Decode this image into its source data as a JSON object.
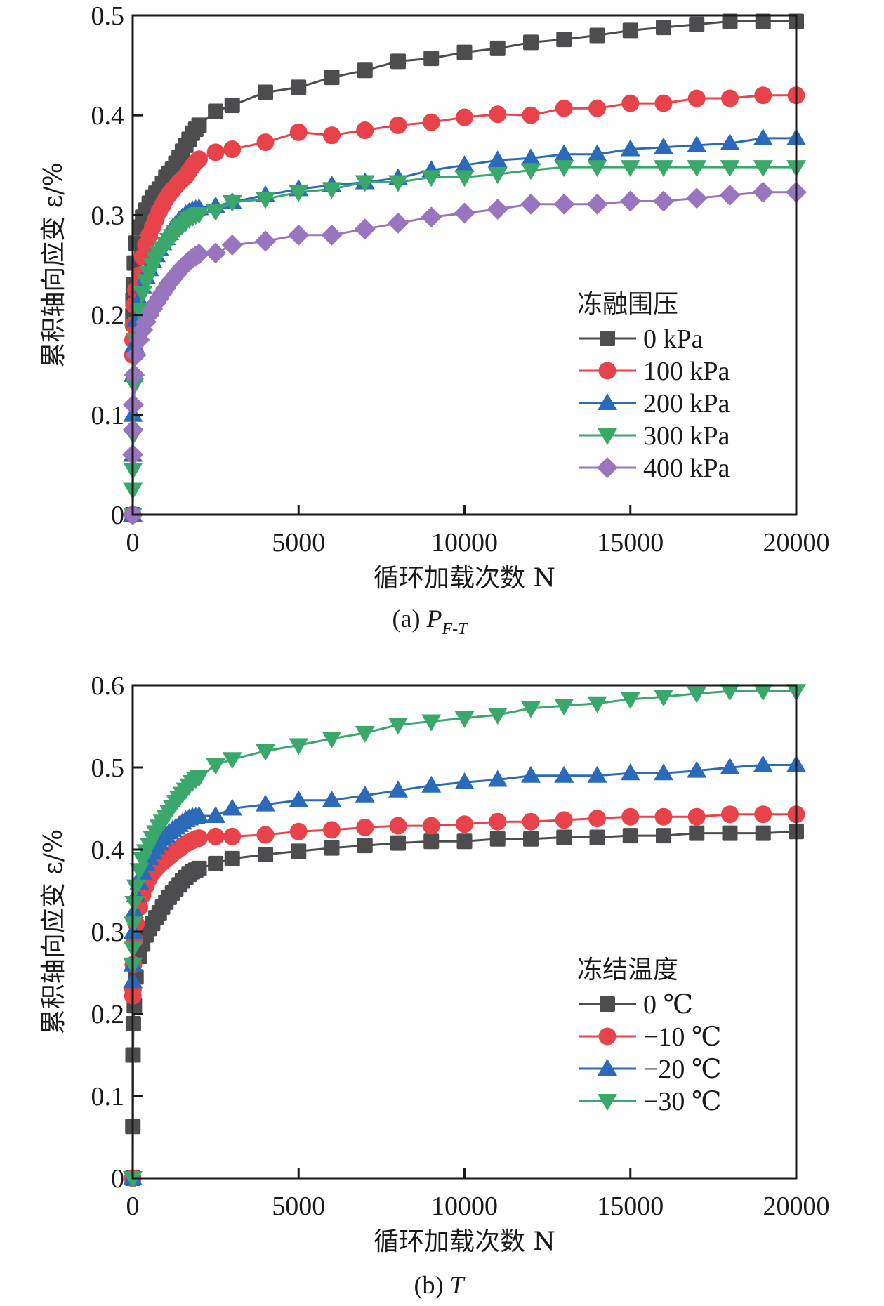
{
  "figure": {
    "panels": [
      {
        "caption_prefix": "(a) ",
        "caption_var": "P",
        "caption_sub": "F-T",
        "legend_title": "冻融围压"
      },
      {
        "caption_prefix": "(b) ",
        "caption_var": "T",
        "caption_sub": "",
        "legend_title": "冻结温度"
      }
    ]
  },
  "chart_data": [
    {
      "type": "line",
      "title": "(a) P_F-T",
      "xlabel": "循环加载次数 N",
      "ylabel": "累积轴向应变 ε/%",
      "xlim": [
        0,
        20000
      ],
      "ylim": [
        0,
        0.5
      ],
      "xticks": [
        0,
        5000,
        10000,
        15000,
        20000
      ],
      "xtick_labels": [
        "0",
        "5000",
        "10000",
        "15000",
        "20000"
      ],
      "yticks": [
        0,
        0.1,
        0.2,
        0.3,
        0.4,
        0.5
      ],
      "ytick_labels": [
        "0",
        "0.1",
        "0.2",
        "0.3",
        "0.4",
        "0.5"
      ],
      "grid": false,
      "legend_title": "冻融围压",
      "legend_position": "center-right",
      "series": [
        {
          "name": "0 kPa",
          "marker": "square",
          "color": "#4d4d4f",
          "x": [
            0,
            5,
            10,
            20,
            50,
            100,
            200,
            300,
            400,
            500,
            600,
            700,
            800,
            900,
            1000,
            1100,
            1200,
            1300,
            1400,
            1500,
            1600,
            1700,
            1800,
            1900,
            2000,
            2500,
            3000,
            4000,
            5000,
            6000,
            7000,
            8000,
            9000,
            10000,
            11000,
            12000,
            13000,
            14000,
            15000,
            16000,
            17000,
            18000,
            19000,
            20000
          ],
          "y": [
            0,
            0.2,
            0.215,
            0.23,
            0.252,
            0.272,
            0.288,
            0.298,
            0.305,
            0.312,
            0.318,
            0.322,
            0.326,
            0.332,
            0.338,
            0.342,
            0.346,
            0.352,
            0.358,
            0.364,
            0.37,
            0.376,
            0.382,
            0.386,
            0.39,
            0.404,
            0.41,
            0.423,
            0.428,
            0.438,
            0.445,
            0.454,
            0.457,
            0.463,
            0.467,
            0.473,
            0.476,
            0.48,
            0.485,
            0.488,
            0.491,
            0.494,
            0.494,
            0.494
          ]
        },
        {
          "name": "100 kPa",
          "marker": "circle",
          "color": "#e8434a",
          "x": [
            0,
            5,
            10,
            20,
            50,
            100,
            200,
            300,
            400,
            500,
            600,
            700,
            800,
            900,
            1000,
            1100,
            1200,
            1300,
            1400,
            1500,
            1600,
            1700,
            1800,
            1900,
            2000,
            2500,
            3000,
            4000,
            5000,
            6000,
            7000,
            8000,
            9000,
            10000,
            11000,
            12000,
            13000,
            14000,
            15000,
            16000,
            17000,
            18000,
            19000,
            20000
          ],
          "y": [
            0,
            0.16,
            0.175,
            0.19,
            0.21,
            0.225,
            0.24,
            0.258,
            0.27,
            0.28,
            0.288,
            0.296,
            0.304,
            0.31,
            0.316,
            0.321,
            0.325,
            0.329,
            0.333,
            0.336,
            0.339,
            0.344,
            0.349,
            0.353,
            0.356,
            0.363,
            0.366,
            0.373,
            0.383,
            0.38,
            0.385,
            0.39,
            0.393,
            0.398,
            0.401,
            0.4,
            0.407,
            0.407,
            0.412,
            0.412,
            0.417,
            0.417,
            0.42,
            0.42
          ]
        },
        {
          "name": "200 kPa",
          "marker": "triangle-up",
          "color": "#2a6ab8",
          "x": [
            0,
            5,
            10,
            20,
            50,
            100,
            200,
            300,
            400,
            500,
            600,
            700,
            800,
            900,
            1000,
            1100,
            1200,
            1300,
            1400,
            1500,
            1600,
            1700,
            1800,
            1900,
            2000,
            2500,
            3000,
            4000,
            5000,
            6000,
            7000,
            8000,
            9000,
            10000,
            11000,
            12000,
            13000,
            14000,
            15000,
            16000,
            17000,
            18000,
            19000,
            20000
          ],
          "y": [
            0,
            0.06,
            0.1,
            0.14,
            0.17,
            0.195,
            0.215,
            0.228,
            0.238,
            0.246,
            0.254,
            0.26,
            0.266,
            0.272,
            0.277,
            0.282,
            0.287,
            0.291,
            0.295,
            0.298,
            0.301,
            0.303,
            0.305,
            0.306,
            0.307,
            0.309,
            0.313,
            0.32,
            0.326,
            0.33,
            0.333,
            0.337,
            0.345,
            0.35,
            0.355,
            0.357,
            0.361,
            0.361,
            0.366,
            0.368,
            0.37,
            0.372,
            0.377,
            0.377
          ]
        },
        {
          "name": "300 kPa",
          "marker": "triangle-down",
          "color": "#3aa86b",
          "x": [
            0,
            5,
            10,
            20,
            50,
            100,
            200,
            300,
            400,
            500,
            600,
            700,
            800,
            900,
            1000,
            1100,
            1200,
            1300,
            1400,
            1500,
            1600,
            1700,
            1800,
            1900,
            2000,
            2500,
            3000,
            4000,
            5000,
            6000,
            7000,
            8000,
            9000,
            10000,
            11000,
            12000,
            13000,
            14000,
            15000,
            16000,
            17000,
            18000,
            19000,
            20000
          ],
          "y": [
            0,
            0.025,
            0.045,
            0.08,
            0.13,
            0.175,
            0.205,
            0.222,
            0.234,
            0.242,
            0.25,
            0.256,
            0.262,
            0.267,
            0.271,
            0.275,
            0.279,
            0.283,
            0.287,
            0.29,
            0.293,
            0.296,
            0.298,
            0.3,
            0.301,
            0.304,
            0.313,
            0.316,
            0.323,
            0.326,
            0.333,
            0.333,
            0.338,
            0.338,
            0.341,
            0.345,
            0.348,
            0.348,
            0.348,
            0.348,
            0.348,
            0.348,
            0.348,
            0.348
          ]
        },
        {
          "name": "400 kPa",
          "marker": "diamond",
          "color": "#9775bf",
          "x": [
            0,
            5,
            10,
            20,
            50,
            100,
            200,
            300,
            400,
            500,
            600,
            700,
            800,
            900,
            1000,
            1100,
            1200,
            1300,
            1400,
            1500,
            1600,
            1700,
            1800,
            1900,
            2000,
            2500,
            3000,
            4000,
            5000,
            6000,
            7000,
            8000,
            9000,
            10000,
            11000,
            12000,
            13000,
            14000,
            15000,
            16000,
            17000,
            18000,
            19000,
            20000
          ],
          "y": [
            0,
            0.06,
            0.085,
            0.11,
            0.14,
            0.16,
            0.175,
            0.185,
            0.193,
            0.2,
            0.206,
            0.212,
            0.217,
            0.222,
            0.227,
            0.232,
            0.236,
            0.24,
            0.244,
            0.248,
            0.251,
            0.254,
            0.257,
            0.259,
            0.261,
            0.262,
            0.27,
            0.274,
            0.28,
            0.28,
            0.286,
            0.292,
            0.298,
            0.302,
            0.306,
            0.311,
            0.311,
            0.311,
            0.314,
            0.314,
            0.317,
            0.32,
            0.323,
            0.323
          ]
        }
      ]
    },
    {
      "type": "line",
      "title": "(b) T",
      "xlabel": "循环加载次数 N",
      "ylabel": "累积轴向应变 ε/%",
      "xlim": [
        0,
        20000
      ],
      "ylim": [
        0,
        0.6
      ],
      "xticks": [
        0,
        5000,
        10000,
        15000,
        20000
      ],
      "xtick_labels": [
        "0",
        "5000",
        "10000",
        "15000",
        "20000"
      ],
      "yticks": [
        0,
        0.1,
        0.2,
        0.3,
        0.4,
        0.5,
        0.6
      ],
      "ytick_labels": [
        "0",
        "0.1",
        "0.2",
        "0.3",
        "0.4",
        "0.5",
        "0.6"
      ],
      "grid": false,
      "legend_title": "冻结温度",
      "legend_position": "center-right",
      "series": [
        {
          "name": "0 ℃",
          "marker": "square",
          "color": "#4d4d4f",
          "x": [
            0,
            5,
            10,
            20,
            50,
            100,
            200,
            300,
            400,
            500,
            600,
            700,
            800,
            900,
            1000,
            1100,
            1200,
            1300,
            1400,
            1500,
            1600,
            1700,
            1800,
            1900,
            2000,
            2500,
            3000,
            4000,
            5000,
            6000,
            7000,
            8000,
            9000,
            10000,
            11000,
            12000,
            13000,
            14000,
            15000,
            16000,
            17000,
            18000,
            19000,
            20000
          ],
          "y": [
            0,
            0.063,
            0.15,
            0.188,
            0.21,
            0.245,
            0.27,
            0.285,
            0.296,
            0.304,
            0.31,
            0.317,
            0.323,
            0.33,
            0.336,
            0.342,
            0.347,
            0.352,
            0.357,
            0.362,
            0.366,
            0.37,
            0.373,
            0.375,
            0.377,
            0.383,
            0.389,
            0.394,
            0.398,
            0.402,
            0.405,
            0.408,
            0.41,
            0.41,
            0.413,
            0.413,
            0.415,
            0.415,
            0.417,
            0.417,
            0.42,
            0.42,
            0.42,
            0.422
          ]
        },
        {
          "name": "−10 ℃",
          "marker": "circle",
          "color": "#e8434a",
          "x": [
            0,
            5,
            10,
            20,
            50,
            100,
            200,
            300,
            400,
            500,
            600,
            700,
            800,
            900,
            1000,
            1100,
            1200,
            1300,
            1400,
            1500,
            1600,
            1700,
            1800,
            1900,
            2000,
            2500,
            3000,
            4000,
            5000,
            6000,
            7000,
            8000,
            9000,
            10000,
            11000,
            12000,
            13000,
            14000,
            15000,
            16000,
            17000,
            18000,
            19000,
            20000
          ],
          "y": [
            0,
            0.222,
            0.23,
            0.26,
            0.29,
            0.31,
            0.33,
            0.345,
            0.356,
            0.365,
            0.372,
            0.377,
            0.381,
            0.385,
            0.388,
            0.392,
            0.395,
            0.398,
            0.401,
            0.404,
            0.407,
            0.409,
            0.411,
            0.413,
            0.414,
            0.416,
            0.416,
            0.418,
            0.422,
            0.424,
            0.427,
            0.429,
            0.429,
            0.431,
            0.434,
            0.434,
            0.436,
            0.438,
            0.44,
            0.44,
            0.44,
            0.443,
            0.443,
            0.443
          ]
        },
        {
          "name": "−20 ℃",
          "marker": "triangle-up",
          "color": "#2a6ab8",
          "x": [
            0,
            5,
            10,
            20,
            50,
            100,
            200,
            300,
            400,
            500,
            600,
            700,
            800,
            900,
            1000,
            1100,
            1200,
            1300,
            1400,
            1500,
            1600,
            1700,
            1800,
            1900,
            2000,
            2500,
            3000,
            4000,
            5000,
            6000,
            7000,
            8000,
            9000,
            10000,
            11000,
            12000,
            13000,
            14000,
            15000,
            16000,
            17000,
            18000,
            19000,
            20000
          ],
          "y": [
            0,
            0.24,
            0.26,
            0.3,
            0.325,
            0.345,
            0.36,
            0.372,
            0.382,
            0.39,
            0.397,
            0.403,
            0.408,
            0.413,
            0.417,
            0.421,
            0.424,
            0.427,
            0.43,
            0.433,
            0.436,
            0.438,
            0.44,
            0.44,
            0.441,
            0.441,
            0.45,
            0.455,
            0.46,
            0.46,
            0.466,
            0.472,
            0.478,
            0.482,
            0.485,
            0.49,
            0.49,
            0.49,
            0.493,
            0.493,
            0.496,
            0.5,
            0.503,
            0.503
          ]
        },
        {
          "name": "−30 ℃",
          "marker": "triangle-down",
          "color": "#3aa86b",
          "x": [
            0,
            5,
            10,
            20,
            50,
            100,
            200,
            300,
            400,
            500,
            600,
            700,
            800,
            900,
            1000,
            1100,
            1200,
            1300,
            1400,
            1500,
            1600,
            1700,
            1800,
            1900,
            2000,
            2500,
            3000,
            4000,
            5000,
            6000,
            7000,
            8000,
            9000,
            10000,
            11000,
            12000,
            13000,
            14000,
            15000,
            16000,
            17000,
            18000,
            19000,
            20000
          ],
          "y": [
            0,
            0.26,
            0.28,
            0.31,
            0.335,
            0.355,
            0.375,
            0.388,
            0.398,
            0.406,
            0.414,
            0.421,
            0.428,
            0.434,
            0.44,
            0.446,
            0.452,
            0.458,
            0.463,
            0.468,
            0.473,
            0.478,
            0.482,
            0.486,
            0.488,
            0.503,
            0.51,
            0.52,
            0.527,
            0.535,
            0.542,
            0.552,
            0.556,
            0.56,
            0.564,
            0.572,
            0.575,
            0.578,
            0.583,
            0.586,
            0.59,
            0.593,
            0.593,
            0.593
          ]
        }
      ]
    }
  ]
}
